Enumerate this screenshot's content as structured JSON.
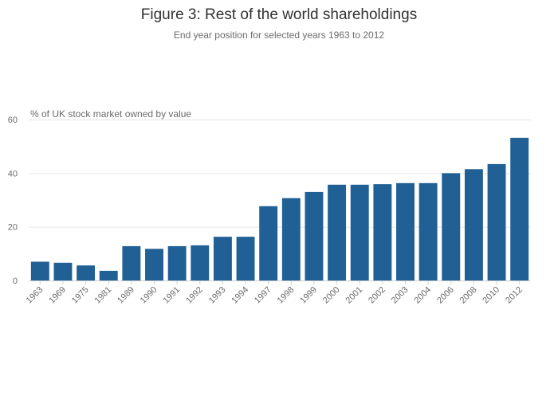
{
  "chart_data": {
    "type": "bar",
    "title": "Figure 3: Rest of the world shareholdings",
    "subtitle": "End year position for selected years 1963 to 2012",
    "ylabel": "% of UK stock market owned by value",
    "xlabel": "",
    "ylim": [
      0,
      60
    ],
    "yticks": [
      0,
      20,
      40,
      60
    ],
    "grid": true,
    "bar_color": "#206095",
    "categories": [
      "1963",
      "1969",
      "1975",
      "1981",
      "1989",
      "1990",
      "1991",
      "1992",
      "1993",
      "1994",
      "1997",
      "1998",
      "1999",
      "2000",
      "2001",
      "2002",
      "2003",
      "2004",
      "2006",
      "2008",
      "2010",
      "2012"
    ],
    "values": [
      7.0,
      6.6,
      5.6,
      3.6,
      12.8,
      11.8,
      12.8,
      13.1,
      16.3,
      16.3,
      27.7,
      30.7,
      33.0,
      35.7,
      35.7,
      35.9,
      36.3,
      36.3,
      40.0,
      41.5,
      43.4,
      53.2
    ]
  }
}
